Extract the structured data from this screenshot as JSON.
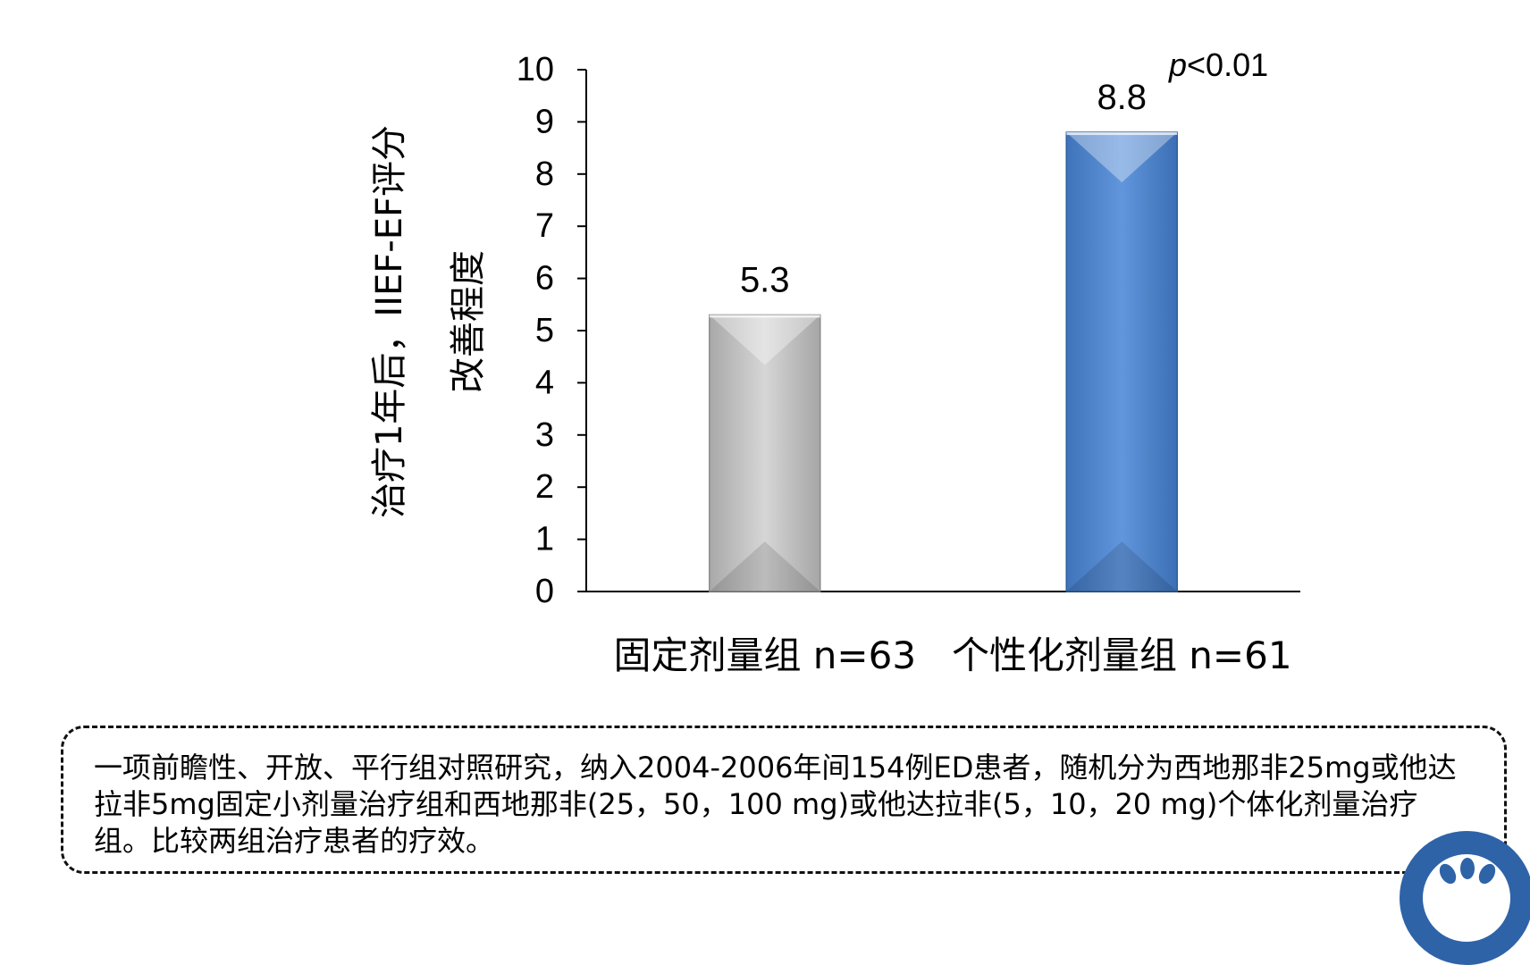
{
  "chart_data": {
    "type": "bar",
    "title": "",
    "ylabel_lines": [
      "治疗1年后，IIEF-EF评分",
      "改善程度"
    ],
    "categories": [
      "固定剂量组 n=63",
      "个性化剂量组 n=61"
    ],
    "values": [
      5.3,
      8.8
    ],
    "value_labels": [
      "5.3",
      "8.8"
    ],
    "ylim": [
      0,
      10
    ],
    "yticks": [
      0,
      1,
      2,
      3,
      4,
      5,
      6,
      7,
      8,
      9,
      10
    ],
    "grid": false,
    "legend": "none",
    "bar_colors": [
      "#c4c4c4",
      "#4f86cc"
    ],
    "bar_edge_colors": [
      "#8c8c8c",
      "#2f5e9e"
    ],
    "annotation": {
      "prefix": "p",
      "text": "<0.01"
    }
  },
  "note": {
    "text": "一项前瞻性、开放、平行组对照研究，纳入2004-2006年间154例ED患者，随机分为西地那非25mg或他达拉非5mg固定小剂量治疗组和西地那非(25，50，100 mg)或他达拉非(5，10，20 mg)个体化剂量治疗组。比较两组治疗患者的疗效。"
  },
  "logo": {
    "icon": "hospital-seal-icon",
    "color": "#2e63a8"
  }
}
